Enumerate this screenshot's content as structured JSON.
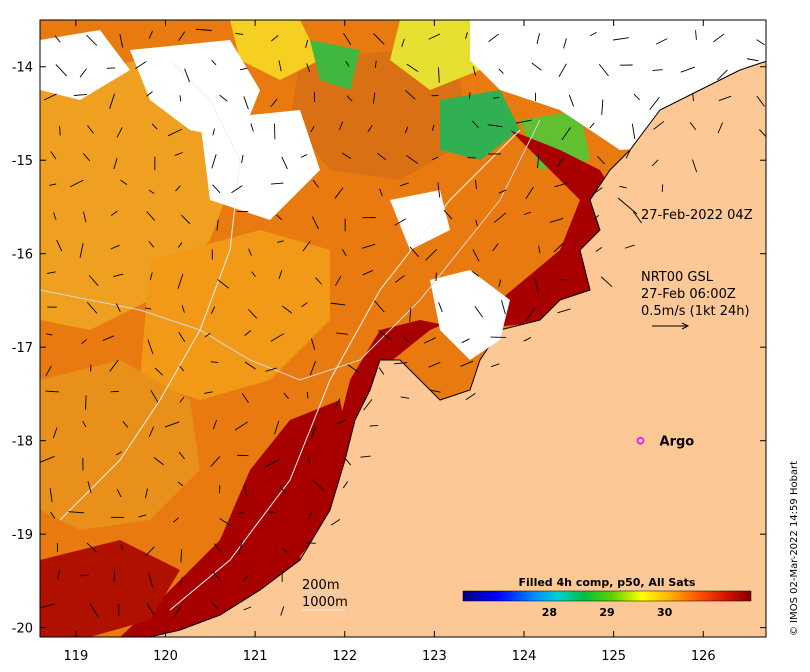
{
  "map": {
    "lon_range": [
      118.6,
      126.7
    ],
    "lat_range": [
      -20.1,
      -13.5
    ],
    "lon_ticks": [
      119,
      120,
      121,
      122,
      123,
      124,
      125,
      126
    ],
    "lat_ticks": [
      -14,
      -15,
      -16,
      -17,
      -18,
      -19,
      -20
    ],
    "lon_tick_labels": [
      "119",
      "120",
      "121",
      "122",
      "123",
      "124",
      "125",
      "126"
    ],
    "lat_tick_labels": [
      "-14",
      "-15",
      "-16",
      "-17",
      "-18",
      "-19",
      "-20"
    ]
  },
  "annotations": {
    "time_label": "27-Feb-2022 04Z",
    "current_source": "NRT00 GSL",
    "current_time": "27-Feb 06:00Z",
    "current_scale": "0.5m/s (1kt 24h)"
  },
  "argo": {
    "label": "Argo",
    "lon": 125.3,
    "lat": -18.0,
    "marker_color": "#ff00ff"
  },
  "contours": {
    "label_200": "200m",
    "label_1000": "1000m"
  },
  "colorbar": {
    "title": "Filled 4h comp, p50, All Sats",
    "range": [
      26.5,
      31.5
    ],
    "tick_values": [
      28,
      29,
      30
    ],
    "tick_labels": [
      "28",
      "29",
      "30"
    ]
  },
  "credit": "© IMOS 02-Mar-2022 14:59 Hobart",
  "colors": {
    "land": "#fcc896",
    "cloud": "#ffffff",
    "sst_hot": "#a80000"
  }
}
